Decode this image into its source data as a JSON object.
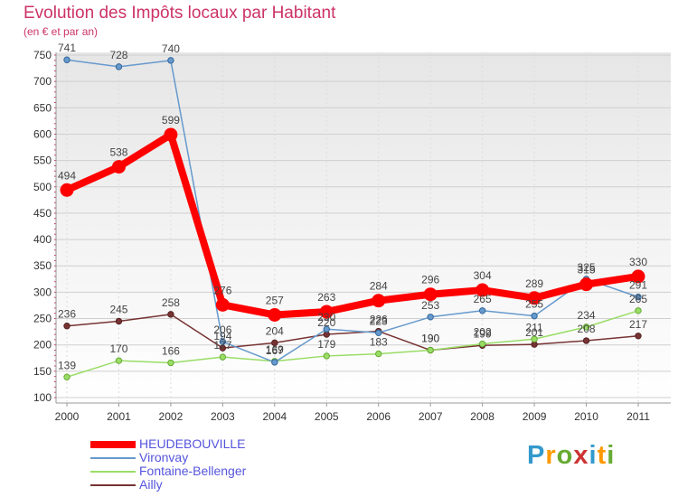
{
  "chart_data": {
    "type": "line",
    "title": "Evolution des Impôts locaux par Habitant",
    "subtitle": "(en € et par an)",
    "x": [
      "2000",
      "2001",
      "2002",
      "2003",
      "2004",
      "2005",
      "2006",
      "2007",
      "2008",
      "2009",
      "2010",
      "2011"
    ],
    "ylim": [
      100,
      750
    ],
    "yticks": [
      100,
      150,
      200,
      250,
      300,
      350,
      400,
      450,
      500,
      550,
      600,
      650,
      700,
      750
    ],
    "grid": true,
    "legend_position": "bottom-left",
    "series": [
      {
        "name": "HEUDEBOUVILLE",
        "color": "#ff0000",
        "values": [
          494,
          538,
          599,
          276,
          257,
          263,
          284,
          296,
          304,
          289,
          315,
          330
        ],
        "labels": [
          "494",
          "538",
          "599",
          "276",
          "257",
          "263",
          "284",
          "296",
          "304",
          "289",
          "315",
          "330"
        ]
      },
      {
        "name": "Vironvay",
        "color": "#6699cc",
        "values": [
          741,
          728,
          740,
          206,
          167,
          230,
          223,
          253,
          265,
          255,
          325,
          291
        ],
        "labels": [
          "741",
          "728",
          "740",
          "206",
          "167",
          "230",
          "223",
          "253",
          "265",
          "255",
          "325",
          "291"
        ]
      },
      {
        "name": "Fontaine-Bellenger",
        "color": "#99dd66",
        "values": [
          139,
          170,
          166,
          177,
          169,
          179,
          183,
          190,
          202,
          211,
          234,
          265
        ],
        "labels": [
          "139",
          "170",
          "166",
          "177",
          "169",
          "179",
          "183",
          "190",
          "202",
          "211",
          "234",
          "265"
        ]
      },
      {
        "name": "Ailly",
        "color": "#773333",
        "values": [
          236,
          245,
          258,
          194,
          204,
          220,
          226,
          190,
          199,
          201,
          208,
          217
        ],
        "labels": [
          "236",
          "245",
          "258",
          "194",
          "204",
          "220",
          "226",
          "190",
          "199",
          "201",
          "208",
          "217"
        ]
      }
    ]
  },
  "logo": {
    "letters": [
      "P",
      "r",
      "o",
      "x",
      "i",
      "t",
      "i"
    ],
    "colors": [
      "#3399cc",
      "#ff9900",
      "#66aa33",
      "#cc3333",
      "#3399cc",
      "#ff9900",
      "#66aa33"
    ]
  }
}
